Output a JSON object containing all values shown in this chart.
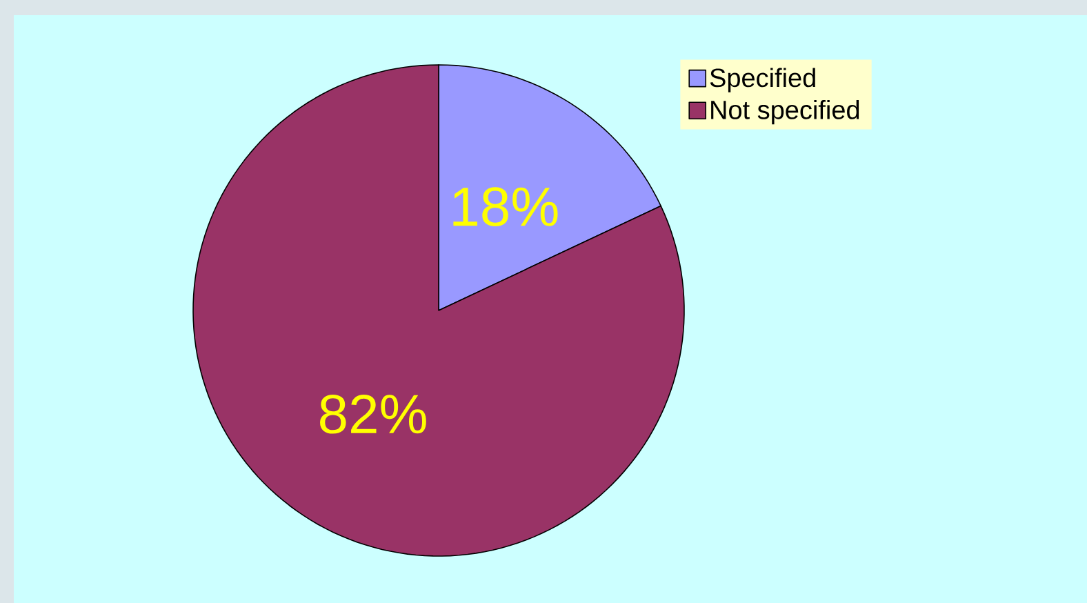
{
  "chart_data": {
    "type": "pie",
    "categories": [
      "Specified",
      "Not specified"
    ],
    "values": [
      18,
      82
    ],
    "colors": [
      "#9999ff",
      "#993366"
    ],
    "value_labels": [
      "18%",
      "82%"
    ],
    "legend": "top right"
  }
}
